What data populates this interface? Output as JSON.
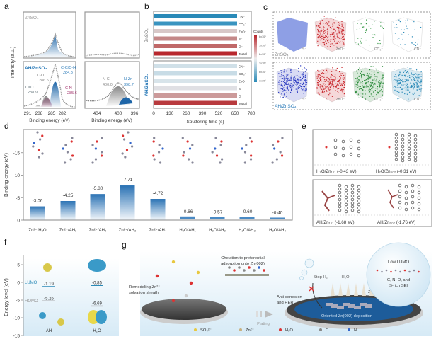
{
  "panel_labels": [
    "a",
    "b",
    "c",
    "d",
    "e",
    "f",
    "g"
  ],
  "panel_a": {
    "ylabel": "Intensity (a.u.)",
    "xlabel": "Binding energy (eV)",
    "top_label": "ZnSO₄",
    "bottom_label": "AH/ZnSO₄",
    "c1s_ticks": [
      "291",
      "288",
      "285",
      "282"
    ],
    "n1s_ticks": [
      "404",
      "400",
      "396"
    ],
    "c1s_peaks": [
      {
        "name": "C-C/C-H",
        "value": "284.8",
        "color": "#2a7ab8"
      },
      {
        "name": "C-O",
        "value": "286.5",
        "color": "#8a8a8a"
      },
      {
        "name": "C=O",
        "value": "288.9",
        "color": "#6a7a80"
      },
      {
        "name": "C-N",
        "value": "285.6",
        "color": "#a0306a"
      }
    ],
    "n1s_peaks": [
      {
        "name": "N-C",
        "value": "400.0",
        "color": "#8a8a8a"
      },
      {
        "name": "N-Zn",
        "value": "398.7",
        "color": "#2a7ab8"
      }
    ]
  },
  "panel_b": {
    "xlabel": "Sputtering time (s)",
    "ticks": [
      "0",
      "130",
      "260",
      "390",
      "520",
      "650",
      "780"
    ],
    "group_labels": [
      "ZnSO₄",
      "AH/ZnSO₄"
    ],
    "species": [
      "CN⁻",
      "CO₃⁻",
      "ZnO⁻",
      "S⁻",
      "O⁻",
      "Toatal"
    ],
    "colorbar_title": "Counts",
    "colorbar_ticks": [
      "6x10⁵",
      "1x10⁵",
      "2x10⁴",
      "3x10³",
      "6x10²",
      "1x10²"
    ],
    "colors": {
      "high": "#b8282e",
      "mid": "#e6e6e6",
      "low": "#2a8ab8"
    }
  },
  "panel_c": {
    "rows": [
      {
        "label": "ZnSO₄",
        "cubes": [
          {
            "ion": "S⁻",
            "color": "#7a8ee0",
            "density": "solid"
          },
          {
            "ion": "ZnO⁻",
            "color": "#c8282e",
            "density": "high"
          },
          {
            "ion": "CO₃⁻",
            "color": "#3a9a4a",
            "density": "sparse"
          },
          {
            "ion": "CN⁻",
            "color": "#2a8ab8",
            "density": "sparse"
          }
        ]
      },
      {
        "label": "AH/ZnSO₄",
        "cubes": [
          {
            "ion": "S⁻",
            "color": "#2a3ac0",
            "density": "high"
          },
          {
            "ion": "ZnO⁻",
            "color": "#c8282e",
            "density": "high"
          },
          {
            "ion": "CO₃⁻",
            "color": "#2a8a3a",
            "density": "high"
          },
          {
            "ion": "CN⁻",
            "color": "#2a8ab8",
            "density": "high"
          }
        ]
      }
    ]
  },
  "chart_data": {
    "type": "bar",
    "ylabel": "Binding energy (eV)",
    "ylim": [
      0,
      -19
    ],
    "yticks": [
      "0",
      "-5",
      "-10",
      "-15"
    ],
    "categories": [
      "Zn²⁺/H₂O",
      "Zn²⁺/AH₁",
      "Zn²⁺/AH₂",
      "Zn²⁺/AH₃",
      "Zn²⁺/AH₄",
      "H₂O/AH₁",
      "H₂O/AH₂",
      "H₂O/AH₃",
      "H₂O/AH₄"
    ],
    "values": [
      -3.06,
      -4.25,
      -5.8,
      -7.71,
      -4.72,
      -0.66,
      -0.57,
      -0.6,
      -0.4
    ],
    "value_labels": [
      "-3.06",
      "-4.25",
      "-5.80",
      "-7.71",
      "-4.72",
      "-0.66",
      "-0.57",
      "-0.60",
      "-0.40"
    ],
    "bar_color": "#2a72b4"
  },
  "panel_e": {
    "configs": [
      {
        "label": "H₂O/Zn₁₀₁ (-0.43 eV)"
      },
      {
        "label": "H₂O/Zn₀₀₂ (-0.31 eV)"
      },
      {
        "label": "AH/Zn₁₀₁ (-1.68 eV)"
      },
      {
        "label": "AH/Zn₀₀₂ (-1.76 eV)"
      }
    ]
  },
  "panel_f": {
    "ylabel": "Energy level (eV)",
    "yticks": [
      "5",
      "0",
      "-5",
      "-10",
      "-15"
    ],
    "lumo_label": "LUMO",
    "homo_label": "HOMO",
    "molecules": [
      {
        "name": "AH",
        "lumo": -1.19,
        "homo": -5.26,
        "lumo_text": "-1.19",
        "homo_text": "-5.26"
      },
      {
        "name": "H₂O",
        "lumo": -0.85,
        "homo": -6.69,
        "lumo_text": "-0.85",
        "homo_text": "-6.69"
      }
    ]
  },
  "panel_g": {
    "remodel_text": [
      "Remodeling Zn²⁺",
      "solvation sheath"
    ],
    "chelation_text": [
      "Chelation to preferential",
      "adsorption onto Zn(002)"
    ],
    "anti_text": [
      "Anti-corrosion",
      "and HER"
    ],
    "plating": "Plating",
    "stop_h2": "Stop H₂",
    "h2o": "H₂O",
    "zn": "Zn²⁺",
    "deposition": "Oriented Zn(002) deposition",
    "bubble_title": "Low LUMO",
    "bubble_text": [
      "C, N, O, and",
      "S-rich SEI"
    ],
    "legend": [
      "SO₄²⁻",
      "Zn²⁺",
      "H₂O",
      "C",
      "N"
    ]
  }
}
